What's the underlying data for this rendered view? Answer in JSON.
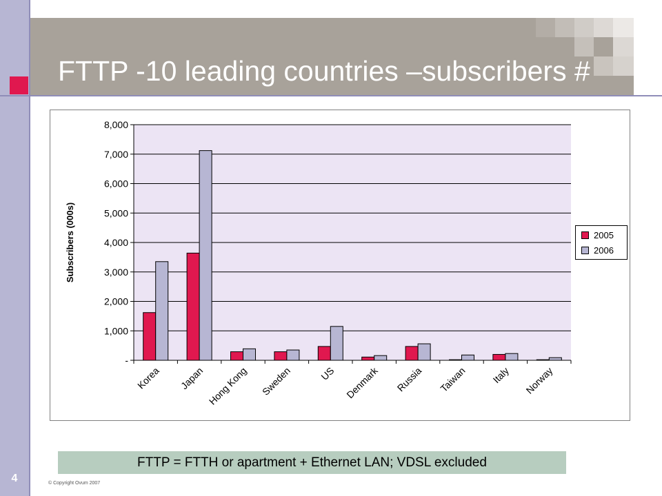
{
  "slide": {
    "title": "FTTP -10 leading countries –subscribers #",
    "number": "4",
    "copyright": "© Copyright Ovum 2007",
    "footnote": "FTTP = FTTH or apartment + Ethernet LAN; VDSL excluded"
  },
  "colors": {
    "series_2005": "#e0184f",
    "series_2006": "#b7b6d3",
    "plot_background": "#ece4f4",
    "title_band": "#a8a29a",
    "left_bar": "#b7b6d3",
    "footnote_background": "#b7cdbf"
  },
  "chart_data": {
    "type": "bar",
    "title": "",
    "xlabel": "",
    "ylabel": "Subscribers (000s)",
    "ylim": [
      0,
      8000
    ],
    "yticks": [
      0,
      1000,
      2000,
      3000,
      4000,
      5000,
      6000,
      7000,
      8000
    ],
    "ytick_labels": [
      "-",
      "1,000",
      "2,000",
      "3,000",
      "4,000",
      "5,000",
      "6,000",
      "7,000",
      "8,000"
    ],
    "categories": [
      "Korea",
      "Japan",
      "Hong Kong",
      "Sweden",
      "US",
      "Denmark",
      "Russia",
      "Taiwan",
      "Italy",
      "Norway"
    ],
    "series": [
      {
        "name": "2005",
        "values": [
          1620,
          3640,
          290,
          290,
          470,
          110,
          470,
          20,
          200,
          20
        ]
      },
      {
        "name": "2006",
        "values": [
          3350,
          7120,
          390,
          350,
          1150,
          160,
          560,
          180,
          230,
          90
        ]
      }
    ],
    "grid": true,
    "legend": "right"
  }
}
